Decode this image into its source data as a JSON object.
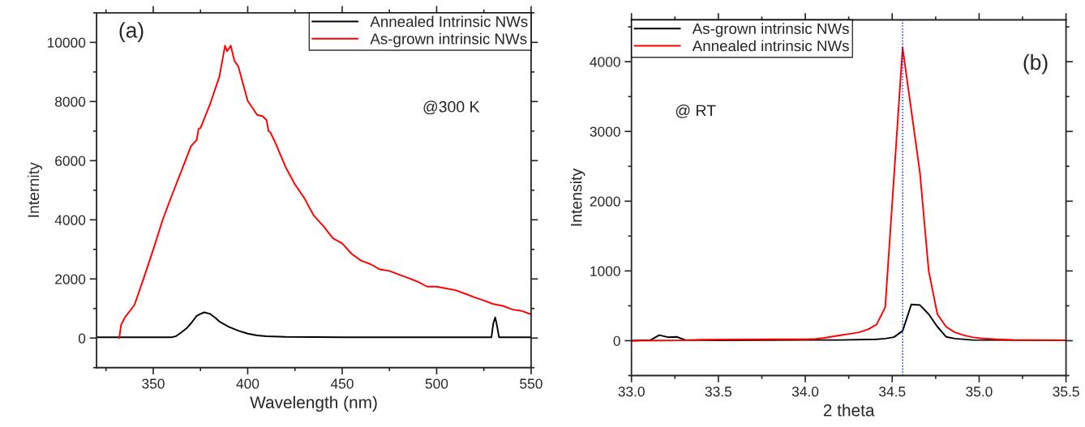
{
  "chart_data": [
    {
      "type": "line",
      "xlabel": "Wavelength (nm)",
      "ylabel": "Internity",
      "xlim": [
        320,
        550
      ],
      "xticks": [
        350,
        400,
        450,
        500,
        550
      ],
      "ylim": [
        -1000,
        11000
      ],
      "yticks": [
        0,
        2000,
        4000,
        6000,
        8000,
        10000
      ],
      "legend": "top right",
      "grid": false,
      "annotations": [
        "(a)",
        "@300 K"
      ],
      "series": [
        {
          "name": "Annealed Intrinsic NWs",
          "color": "#000000",
          "x": [
            320,
            340,
            360,
            362,
            365,
            368,
            370,
            373,
            375,
            377,
            380,
            383,
            385,
            390,
            395,
            400,
            405,
            410,
            420,
            450,
            500,
            529,
            530,
            531,
            532,
            533,
            550
          ],
          "values": [
            30,
            30,
            30,
            60,
            200,
            350,
            500,
            750,
            820,
            870,
            820,
            680,
            560,
            380,
            250,
            150,
            90,
            60,
            40,
            30,
            30,
            30,
            500,
            700,
            400,
            30,
            30
          ]
        },
        {
          "name": "As-grown intrinsic NWs",
          "color": "#ff0000",
          "x": [
            332,
            333,
            335,
            340,
            345,
            350,
            355,
            360,
            365,
            370,
            373,
            374,
            375,
            380,
            385,
            388,
            389,
            390,
            391,
            393,
            395,
            398,
            400,
            405,
            408,
            410,
            411,
            412,
            415,
            420,
            425,
            430,
            435,
            440,
            445,
            450,
            455,
            460,
            465,
            470,
            475,
            480,
            485,
            490,
            495,
            500,
            505,
            510,
            515,
            520,
            525,
            530,
            535,
            540,
            545,
            550
          ],
          "values": [
            0,
            450,
            700,
            1110,
            2030,
            2990,
            4000,
            4850,
            5670,
            6490,
            6700,
            7080,
            7100,
            7900,
            8840,
            9890,
            9700,
            9780,
            9890,
            9370,
            9190,
            8490,
            8020,
            7550,
            7500,
            7370,
            7000,
            6960,
            6550,
            5790,
            5200,
            4730,
            4140,
            3790,
            3380,
            3200,
            2850,
            2620,
            2500,
            2320,
            2270,
            2150,
            2030,
            1910,
            1740,
            1740,
            1680,
            1620,
            1500,
            1380,
            1270,
            1150,
            1090,
            970,
            920,
            800
          ]
        }
      ]
    },
    {
      "type": "line",
      "xlabel": "2 theta",
      "ylabel": "Intensity",
      "xlim": [
        33.0,
        35.5
      ],
      "xticks": [
        {
          "value": 33.0,
          "label": "33.0"
        },
        33.5,
        {
          "value": 34.0,
          "label": "34.0"
        },
        34.5,
        {
          "value": 35.0,
          "label": "35.0"
        },
        35.5
      ],
      "ylim": [
        -500,
        4600
      ],
      "yticks": [
        0,
        1000,
        2000,
        3000,
        4000
      ],
      "legend": "top left",
      "grid": false,
      "annotations": [
        "(b)",
        "@ RT"
      ],
      "ref_lines": [
        {
          "axis": "x",
          "value": 34.56,
          "color": "#0000ff",
          "line_style": "dotted"
        }
      ],
      "series": [
        {
          "name": "As-grown intrinsic NWs",
          "color": "#000000",
          "x": [
            33.0,
            33.11,
            33.16,
            33.21,
            33.26,
            33.31,
            33.5,
            34.0,
            34.2,
            34.41,
            34.46,
            34.51,
            34.56,
            34.61,
            34.66,
            34.71,
            34.76,
            34.81,
            34.86,
            34.96,
            35.5
          ],
          "values": [
            0,
            10,
            80,
            50,
            55,
            10,
            5,
            10,
            10,
            20,
            30,
            50,
            140,
            520,
            510,
            380,
            200,
            55,
            30,
            10,
            5
          ]
        },
        {
          "name": "Annealed intrinsic NWs",
          "color": "#ff0000",
          "x": [
            33.0,
            33.3,
            33.4,
            33.8,
            34.01,
            34.06,
            34.11,
            34.16,
            34.21,
            34.26,
            34.31,
            34.36,
            34.41,
            34.46,
            34.56,
            34.61,
            34.66,
            34.71,
            34.76,
            34.81,
            34.86,
            34.91,
            34.96,
            35.01,
            35.1,
            35.2,
            35.5
          ],
          "values": [
            0,
            5,
            15,
            20,
            20,
            25,
            40,
            60,
            80,
            100,
            120,
            160,
            230,
            480,
            4200,
            3300,
            2400,
            1000,
            380,
            200,
            120,
            80,
            50,
            35,
            20,
            12,
            5
          ]
        }
      ]
    }
  ]
}
